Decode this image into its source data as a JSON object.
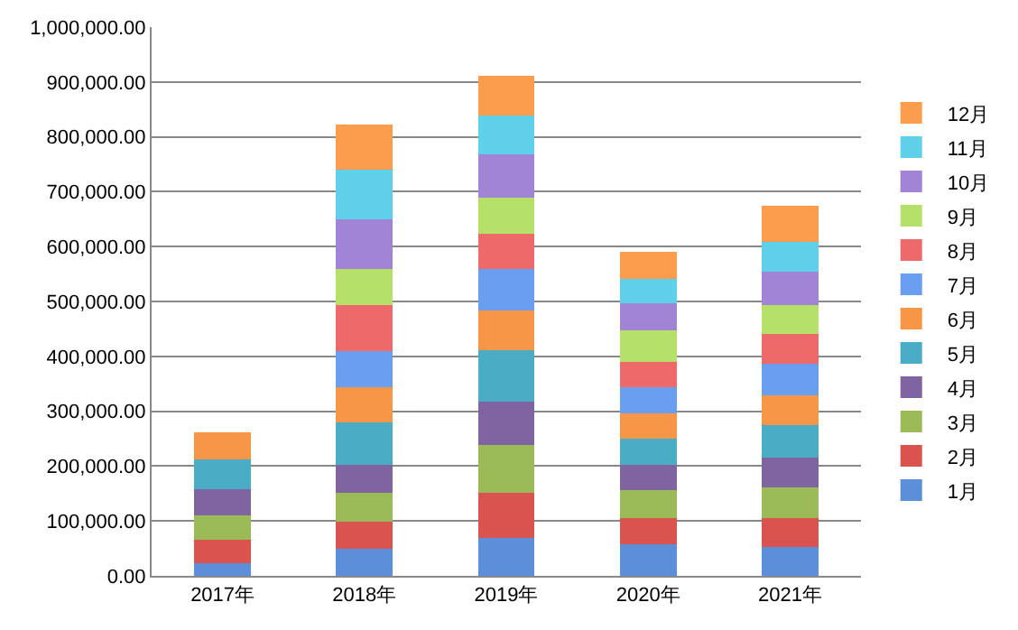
{
  "chart_data": {
    "type": "bar",
    "stacked": true,
    "categories": [
      "2017年",
      "2018年",
      "2019年",
      "2020年",
      "2021年"
    ],
    "series": [
      {
        "name": "1月",
        "color": "#5b8fd9",
        "values": [
          23000,
          50000,
          69000,
          58000,
          52000
        ]
      },
      {
        "name": "2月",
        "color": "#d9534f",
        "values": [
          42000,
          48000,
          83000,
          48000,
          53000
        ]
      },
      {
        "name": "3月",
        "color": "#9bbb59",
        "values": [
          46000,
          54000,
          87000,
          51000,
          56000
        ]
      },
      {
        "name": "4月",
        "color": "#8064a2",
        "values": [
          47000,
          50000,
          78000,
          46000,
          55000
        ]
      },
      {
        "name": "5月",
        "color": "#4bacc6",
        "values": [
          54000,
          78000,
          94000,
          47000,
          58000
        ]
      },
      {
        "name": "6月",
        "color": "#f79646",
        "values": [
          50000,
          64000,
          73000,
          46000,
          55000
        ]
      },
      {
        "name": "7月",
        "color": "#6a9ef0",
        "values": [
          null,
          65000,
          75000,
          48000,
          57000
        ]
      },
      {
        "name": "8月",
        "color": "#ee6a6a",
        "values": [
          null,
          85000,
          65000,
          45000,
          55000
        ]
      },
      {
        "name": "9月",
        "color": "#b5e06a",
        "values": [
          null,
          66000,
          65000,
          59000,
          53000
        ]
      },
      {
        "name": "10月",
        "color": "#a284d6",
        "values": [
          null,
          90000,
          79000,
          48000,
          60000
        ]
      },
      {
        "name": "11月",
        "color": "#5fd0ea",
        "values": [
          null,
          90000,
          71000,
          45000,
          55000
        ]
      },
      {
        "name": "12月",
        "color": "#fb9d4d",
        "values": [
          null,
          82000,
          72000,
          50000,
          66000
        ]
      }
    ],
    "ylim": [
      0,
      1000000
    ],
    "yticks": [
      {
        "value": 0,
        "label": "0.00"
      },
      {
        "value": 100000,
        "label": "100,000.00"
      },
      {
        "value": 200000,
        "label": "200,000.00"
      },
      {
        "value": 300000,
        "label": "300,000.00"
      },
      {
        "value": 400000,
        "label": "400,000.00"
      },
      {
        "value": 500000,
        "label": "500,000.00"
      },
      {
        "value": 600000,
        "label": "600,000.00"
      },
      {
        "value": 700000,
        "label": "700,000.00"
      },
      {
        "value": 800000,
        "label": "800,000.00"
      },
      {
        "value": 900000,
        "label": "900,000.00"
      },
      {
        "value": 1000000,
        "label": "1,000,000.00"
      }
    ],
    "grid": "y",
    "legend": "right"
  }
}
